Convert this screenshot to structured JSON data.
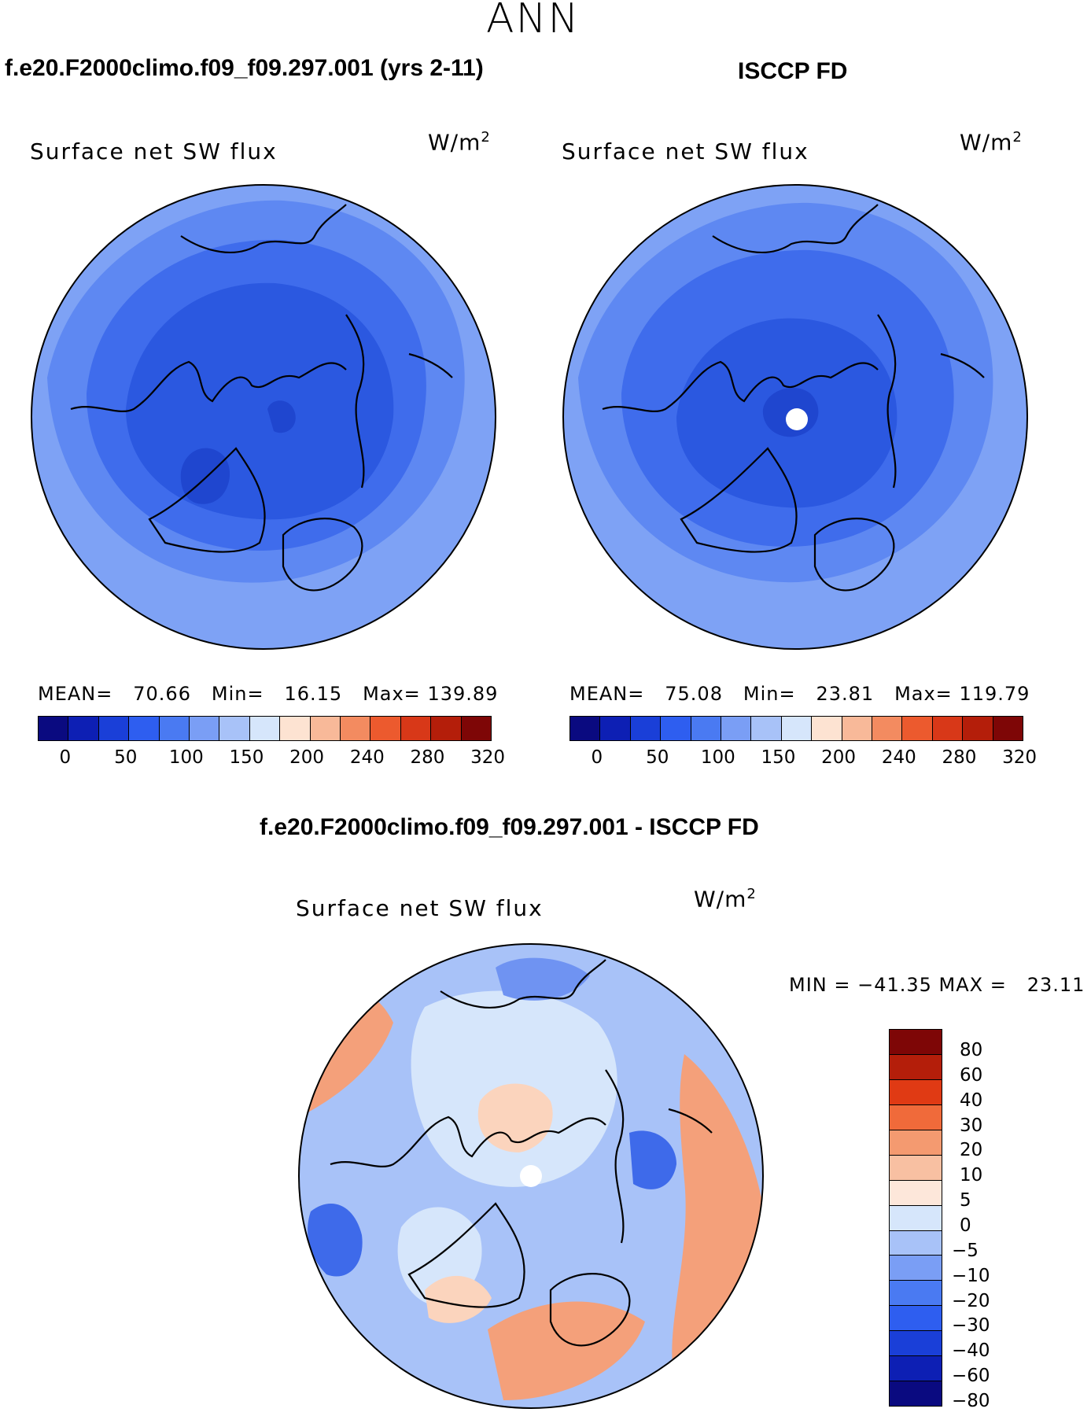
{
  "season": "ANN",
  "titles": {
    "model": "f.e20.F2000climo.f09_f09.297.001 (yrs 2-11)",
    "obs": "ISCCP FD",
    "diff": "f.e20.F2000climo.f09_f09.297.001 - ISCCP FD"
  },
  "panels": {
    "model": {
      "field": "Surface net SW flux",
      "units": "W/m",
      "units_sup": "2",
      "mean_label": "MEAN=",
      "mean": "70.66",
      "min_label": "Min=",
      "min": "16.15",
      "max_label": "Max=",
      "max": "139.89"
    },
    "obs": {
      "field": "Surface net SW flux",
      "units": "W/m",
      "units_sup": "2",
      "mean_label": "MEAN=",
      "mean": "75.08",
      "min_label": "Min=",
      "min": "23.81",
      "max_label": "Max=",
      "max": "119.79"
    },
    "diff": {
      "field": "Surface net SW flux",
      "units": "W/m",
      "units_sup": "2",
      "minmax": "MIN = −41.35 MAX =   23.11"
    }
  },
  "colorbar_abs": {
    "colors": [
      "#0a0a80",
      "#0d1fb4",
      "#1a3fd8",
      "#2e5ef0",
      "#4a7af2",
      "#7a9ef5",
      "#a8c2f8",
      "#d6e6fb",
      "#fde3d2",
      "#f8b999",
      "#f38b60",
      "#ec5a2e",
      "#d83818",
      "#b41e0a",
      "#7e0606"
    ],
    "ticks": [
      "0",
      "50",
      "100",
      "150",
      "200",
      "240",
      "280",
      "320"
    ]
  },
  "colorbar_diff": {
    "colors": [
      "#7e0606",
      "#b41e0a",
      "#e03a14",
      "#f06a3a",
      "#f49a70",
      "#f8c0a2",
      "#fde7da",
      "#d6e6fb",
      "#a8c2f8",
      "#7a9ef5",
      "#4a7af2",
      "#2e5ef0",
      "#1a3fd8",
      "#0d1fb4",
      "#0a0a80"
    ],
    "ticks": [
      "80",
      "60",
      "40",
      "30",
      "20",
      "10",
      "5",
      "0",
      "−5",
      "−10",
      "−20",
      "−30",
      "−40",
      "−60",
      "−80"
    ]
  },
  "map_colors": {
    "model": [
      "#7ea2f5",
      "#5e88f2",
      "#3f6cec",
      "#2b58e0",
      "#1f46cf"
    ],
    "obs": [
      "#7ea2f5",
      "#5e88f2",
      "#3f6cec",
      "#2b58e0",
      "#1f46cf"
    ],
    "diff": [
      "#f4a07a",
      "#fbd4bd",
      "#d6e6fb",
      "#a8c2f8",
      "#6f93f2",
      "#3e6aea"
    ]
  }
}
